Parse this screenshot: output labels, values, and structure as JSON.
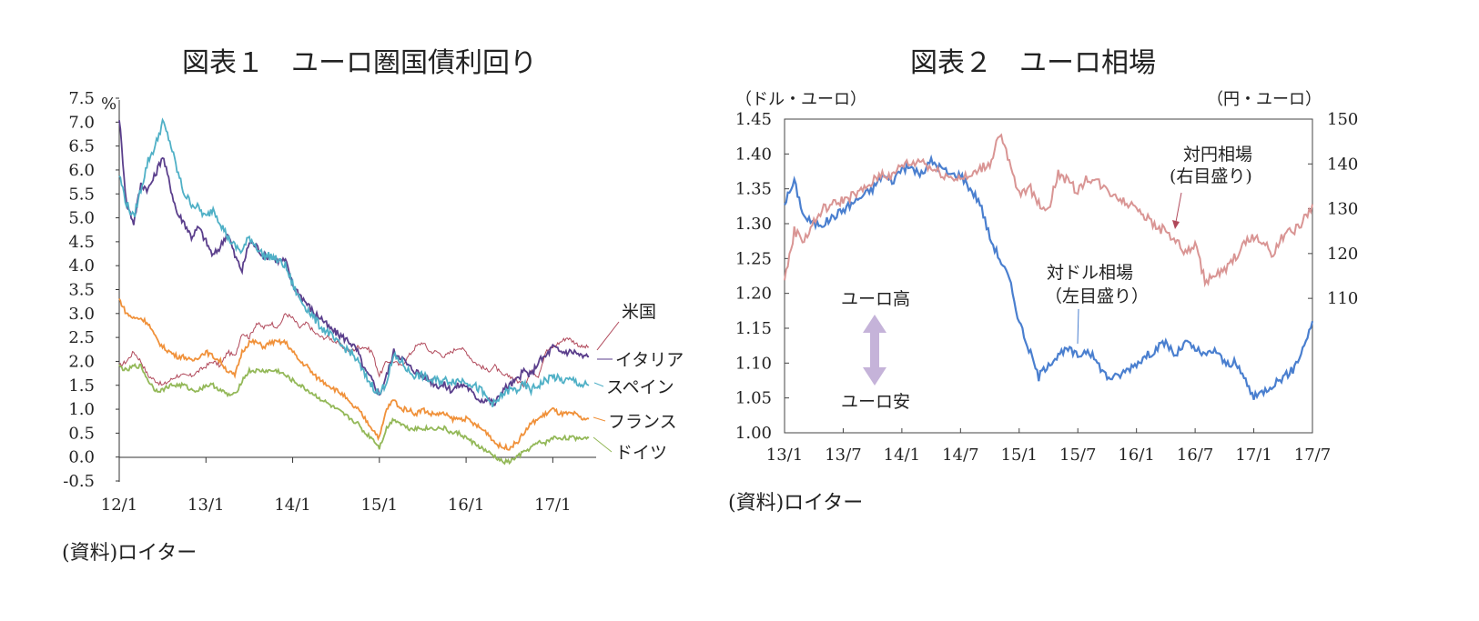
{
  "chart1": {
    "title": "図表１　ユーロ圏国債利回り",
    "source": "(資料)ロイター",
    "unit": "%"
  },
  "chart2": {
    "title": "図表２　ユーロ相場",
    "source": "(資料)ロイター",
    "left_axis_unit": "（ドル・ユーロ）",
    "right_axis_unit": "（円・ユーロ）",
    "annotation_yen_line1": "対円相場",
    "annotation_yen_line2": "(右目盛り)",
    "annotation_usd_line1": "対ドル相場",
    "annotation_usd_line2": "（左目盛り）",
    "arrow_up_label": "ユーロ高",
    "arrow_down_label": "ユーロ安"
  },
  "colors": {
    "us": "#b0485a",
    "italy": "#5b3f8c",
    "spain": "#4fb0c6",
    "france": "#f0913a",
    "germany": "#93b858",
    "eurusd": "#4a7fcf",
    "eurjpy": "#d99594",
    "arrow": "#c5b3d9"
  },
  "chart_data": [
    {
      "type": "line",
      "title": "図表１　ユーロ圏国債利回り",
      "ylabel": "%",
      "ylim": [
        -0.5,
        7.5
      ],
      "yticks": [
        "7.5",
        "7.0",
        "6.5",
        "6.0",
        "5.5",
        "5.0",
        "4.5",
        "4.0",
        "3.5",
        "3.0",
        "2.5",
        "2.0",
        "1.5",
        "1.0",
        "0.5",
        "0.0",
        "-0.5"
      ],
      "xlim": [
        0,
        66
      ],
      "xticks": [
        "12/1",
        "13/1",
        "14/1",
        "15/1",
        "16/1",
        "17/1"
      ],
      "x": [
        0,
        1,
        2,
        3,
        4,
        5,
        6,
        7,
        8,
        9,
        10,
        11,
        12,
        13,
        14,
        15,
        16,
        17,
        18,
        19,
        20,
        21,
        22,
        23,
        24,
        25,
        26,
        27,
        28,
        29,
        30,
        31,
        32,
        33,
        34,
        35,
        36,
        37,
        38,
        39,
        40,
        41,
        42,
        43,
        44,
        45,
        46,
        47,
        48,
        49,
        50,
        51,
        52,
        53,
        54,
        55,
        56,
        57,
        58,
        59,
        60,
        61,
        62,
        63,
        64,
        65
      ],
      "series": [
        {
          "name": "米国",
          "key": "us",
          "values": [
            1.9,
            2.0,
            2.2,
            2.0,
            1.7,
            1.6,
            1.5,
            1.6,
            1.7,
            1.7,
            1.7,
            1.8,
            1.9,
            2.0,
            1.9,
            2.2,
            2.1,
            2.6,
            2.5,
            2.8,
            2.7,
            2.8,
            2.7,
            3.0,
            2.9,
            2.7,
            2.8,
            2.6,
            2.5,
            2.5,
            2.4,
            2.3,
            2.2,
            2.3,
            2.3,
            2.2,
            1.7,
            2.0,
            2.0,
            1.9,
            2.1,
            2.3,
            2.4,
            2.2,
            2.2,
            2.1,
            2.2,
            2.3,
            2.2,
            2.0,
            1.9,
            1.8,
            1.9,
            1.7,
            1.7,
            1.6,
            1.5,
            1.8,
            1.7,
            2.2,
            2.3,
            2.4,
            2.5,
            2.4,
            2.3,
            2.3
          ]
        },
        {
          "name": "イタリア",
          "key": "italy",
          "values": [
            7.1,
            5.3,
            4.9,
            5.7,
            5.6,
            5.9,
            6.3,
            5.7,
            5.1,
            4.9,
            4.6,
            4.8,
            4.5,
            4.2,
            4.4,
            4.7,
            4.2,
            3.9,
            4.5,
            4.4,
            4.2,
            4.2,
            4.1,
            4.1,
            3.6,
            3.4,
            3.2,
            3.0,
            2.9,
            2.7,
            2.6,
            2.5,
            2.4,
            2.2,
            1.8,
            1.6,
            1.3,
            1.7,
            2.2,
            2.1,
            1.9,
            1.8,
            1.7,
            1.6,
            1.5,
            1.5,
            1.4,
            1.5,
            1.5,
            1.3,
            1.2,
            1.2,
            1.1,
            1.4,
            1.5,
            1.6,
            1.8,
            1.7,
            2.0,
            2.1,
            2.3,
            2.2,
            2.2,
            2.2,
            2.1,
            2.1
          ]
        },
        {
          "name": "スペイン",
          "key": "spain",
          "values": [
            5.9,
            5.3,
            5.0,
            5.6,
            6.2,
            6.5,
            7.0,
            6.6,
            6.0,
            5.5,
            5.3,
            5.2,
            5.0,
            5.2,
            4.9,
            4.6,
            4.4,
            4.3,
            4.6,
            4.4,
            4.2,
            4.2,
            4.1,
            4.0,
            3.6,
            3.3,
            3.1,
            2.9,
            2.7,
            2.6,
            2.4,
            2.3,
            2.2,
            2.0,
            1.7,
            1.5,
            1.3,
            1.6,
            2.1,
            2.0,
            1.8,
            1.7,
            1.7,
            1.6,
            1.6,
            1.6,
            1.6,
            1.6,
            1.6,
            1.5,
            1.4,
            1.2,
            1.1,
            1.3,
            1.4,
            1.4,
            1.5,
            1.4,
            1.5,
            1.6,
            1.7,
            1.6,
            1.6,
            1.6,
            1.5,
            1.5
          ]
        },
        {
          "name": "フランス",
          "key": "france",
          "values": [
            3.3,
            3.0,
            2.9,
            2.9,
            2.8,
            2.5,
            2.3,
            2.2,
            2.1,
            2.1,
            2.0,
            2.1,
            2.2,
            2.1,
            2.0,
            1.8,
            1.7,
            2.2,
            2.4,
            2.4,
            2.3,
            2.4,
            2.4,
            2.4,
            2.2,
            2.0,
            1.9,
            1.7,
            1.6,
            1.5,
            1.4,
            1.3,
            1.1,
            1.0,
            0.8,
            0.6,
            0.4,
            1.0,
            1.2,
            1.0,
            1.0,
            0.9,
            1.0,
            0.9,
            0.9,
            0.9,
            0.8,
            0.8,
            0.8,
            0.7,
            0.6,
            0.5,
            0.3,
            0.2,
            0.2,
            0.3,
            0.5,
            0.7,
            0.8,
            0.9,
            1.0,
            0.9,
            0.9,
            0.9,
            0.8,
            0.8
          ]
        },
        {
          "name": "ドイツ",
          "key": "germany",
          "values": [
            1.9,
            1.8,
            1.9,
            1.9,
            1.6,
            1.4,
            1.4,
            1.5,
            1.5,
            1.5,
            1.4,
            1.4,
            1.5,
            1.5,
            1.4,
            1.3,
            1.3,
            1.6,
            1.8,
            1.8,
            1.8,
            1.8,
            1.8,
            1.7,
            1.6,
            1.5,
            1.4,
            1.3,
            1.2,
            1.1,
            1.0,
            0.9,
            0.8,
            0.7,
            0.5,
            0.4,
            0.2,
            0.6,
            0.8,
            0.7,
            0.6,
            0.6,
            0.6,
            0.6,
            0.6,
            0.6,
            0.5,
            0.5,
            0.4,
            0.3,
            0.2,
            0.1,
            0.0,
            -0.1,
            -0.1,
            0.0,
            0.1,
            0.2,
            0.3,
            0.3,
            0.4,
            0.4,
            0.4,
            0.4,
            0.4,
            0.4
          ]
        }
      ]
    },
    {
      "type": "line",
      "title": "図表２　ユーロ相場",
      "xlim": [
        0,
        54
      ],
      "xticks": [
        "13/1",
        "13/7",
        "14/1",
        "14/7",
        "15/1",
        "15/7",
        "16/1",
        "16/7",
        "17/1",
        "17/7"
      ],
      "ylabel": "（ドル・ユーロ）",
      "ylim": [
        1.0,
        1.45
      ],
      "yticks": [
        "1.45",
        "1.40",
        "1.35",
        "1.30",
        "1.25",
        "1.20",
        "1.15",
        "1.10",
        "1.05",
        "1.00"
      ],
      "y2label": "（円・ユーロ）",
      "y2lim": [
        80,
        150
      ],
      "y2ticks": [
        "150",
        "140",
        "130",
        "120",
        "110"
      ],
      "x": [
        0,
        1,
        2,
        3,
        4,
        5,
        6,
        7,
        8,
        9,
        10,
        11,
        12,
        13,
        14,
        15,
        16,
        17,
        18,
        19,
        20,
        21,
        22,
        23,
        24,
        25,
        26,
        27,
        28,
        29,
        30,
        31,
        32,
        33,
        34,
        35,
        36,
        37,
        38,
        39,
        40,
        41,
        42,
        43,
        44,
        45,
        46,
        47,
        48,
        49,
        50,
        51,
        52,
        53,
        54
      ],
      "series": [
        {
          "name": "対ドル相場（左目盛り）",
          "key": "eurusd",
          "axis": "left",
          "values": [
            1.33,
            1.36,
            1.31,
            1.3,
            1.3,
            1.31,
            1.32,
            1.33,
            1.34,
            1.35,
            1.37,
            1.36,
            1.38,
            1.38,
            1.37,
            1.39,
            1.38,
            1.37,
            1.37,
            1.35,
            1.33,
            1.28,
            1.25,
            1.22,
            1.16,
            1.12,
            1.08,
            1.1,
            1.11,
            1.12,
            1.11,
            1.12,
            1.1,
            1.08,
            1.08,
            1.09,
            1.1,
            1.11,
            1.12,
            1.13,
            1.11,
            1.13,
            1.12,
            1.11,
            1.12,
            1.1,
            1.1,
            1.08,
            1.05,
            1.06,
            1.07,
            1.08,
            1.09,
            1.12,
            1.16
          ]
        },
        {
          "name": "対円相場（右目盛り）",
          "key": "eurjpy",
          "axis": "right",
          "values": [
            114,
            125,
            123,
            127,
            130,
            131,
            132,
            133,
            134,
            136,
            138,
            137,
            140,
            140,
            141,
            139,
            138,
            137,
            137,
            137,
            139,
            140,
            147,
            140,
            133,
            135,
            131,
            130,
            138,
            136,
            134,
            137,
            136,
            134,
            133,
            131,
            131,
            128,
            126,
            125,
            123,
            120,
            122,
            114,
            115,
            116,
            119,
            122,
            124,
            122,
            120,
            124,
            125,
            127,
            131
          ]
        }
      ]
    }
  ]
}
